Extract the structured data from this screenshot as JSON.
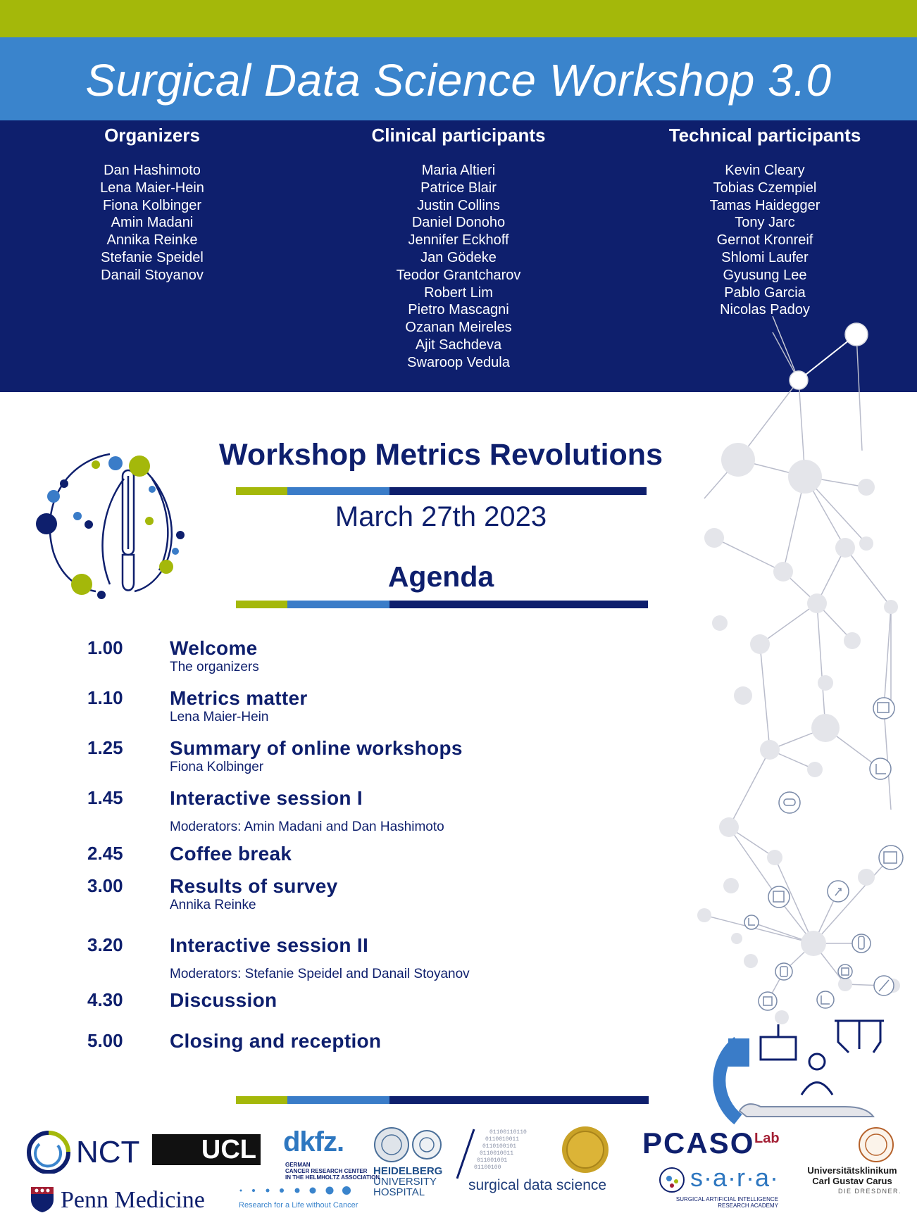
{
  "header": {
    "title": "Surgical Data Science Workshop 3.0"
  },
  "organizers": {
    "heading": "Organizers",
    "names": [
      "Dan Hashimoto",
      "Lena Maier-Hein",
      "Fiona Kolbinger",
      "Amin Madani",
      "Annika Reinke",
      "Stefanie Speidel",
      "Danail Stoyanov"
    ]
  },
  "clinical": {
    "heading": "Clinical participants",
    "names": [
      "Maria Altieri",
      "Patrice Blair",
      "Justin Collins",
      "Daniel Donoho",
      "Jennifer Eckhoff",
      "Jan Gödeke",
      "Teodor Grantcharov",
      "Robert Lim",
      "Pietro Mascagni",
      "Ozanan Meireles",
      "Ajit Sachdeva",
      "Swaroop Vedula"
    ]
  },
  "technical": {
    "heading": "Technical participants",
    "names": [
      "Kevin Cleary",
      "Tobias Czempiel",
      "Tamas Haidegger",
      "Tony Jarc",
      "Gernot Kronreif",
      "Shlomi Laufer",
      "Gyusung Lee",
      "Pablo Garcia",
      "Nicolas Padoy"
    ]
  },
  "workshop": {
    "headline": "Workshop Metrics Revolutions",
    "date": "March 27th 2023",
    "agenda_title": "Agenda"
  },
  "agenda": [
    {
      "time": "1.00",
      "title": "Welcome",
      "subtitle": "The organizers"
    },
    {
      "time": "1.10",
      "title": "Metrics matter",
      "subtitle": "Lena Maier-Hein"
    },
    {
      "time": "1.25",
      "title": "Summary of online workshops",
      "subtitle": "Fiona Kolbinger"
    },
    {
      "time": "1.45",
      "title": "Interactive session I",
      "subtitle": "Moderators: Amin Madani and Dan Hashimoto"
    },
    {
      "time": "2.45",
      "title": "Coffee break",
      "subtitle": ""
    },
    {
      "time": "3.00",
      "title": "Results of survey",
      "subtitle": "Annika Reinke"
    },
    {
      "time": "3.20",
      "title": "Interactive session II",
      "subtitle": "Moderators: Stefanie Speidel and Danail Stoyanov"
    },
    {
      "time": "4.30",
      "title": "Discussion",
      "subtitle": ""
    },
    {
      "time": "5.00",
      "title": "Closing and reception",
      "subtitle": ""
    }
  ],
  "logos": {
    "nct": "NCT",
    "ucl": "UCL",
    "penn": "Penn Medicine",
    "dkfz": "dkfz.",
    "dkfz_line1": "GERMAN",
    "dkfz_line2": "CANCER RESEARCH CENTER",
    "dkfz_line3": "IN THE HELMHOLTZ ASSOCIATION",
    "dkfz_tagline": "Research for a Life without Cancer",
    "heidelberg_line1": "HEIDELBERG",
    "heidelberg_line2": "UNIVERSITY",
    "heidelberg_line3": "HOSPITAL",
    "sds": "surgical data science",
    "pcaso": "PCASO",
    "pcaso_lab": "Lab",
    "sara": "s·a·r·a·",
    "sara_line1": "SURGICAL ARTIFICIAL INTELLIGENCE",
    "sara_line2": "RESEARCH ACADEMY",
    "carus_line1": "Universitätsklinikum",
    "carus_line2": "Carl Gustav Carus",
    "carus_line3": "DIE DRESDNER."
  },
  "colors": {
    "green": "#a4b80a",
    "blue": "#3a84cc",
    "navy": "#0e1f6d"
  }
}
